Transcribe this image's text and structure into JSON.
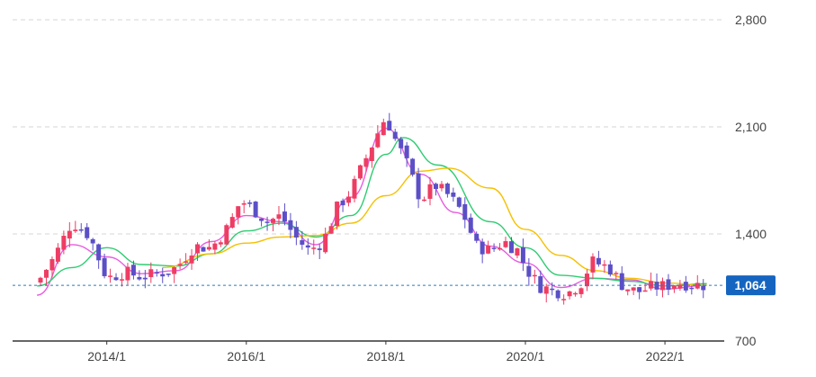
{
  "chart_data": {
    "type": "candlestick",
    "title": "",
    "xlabel": "",
    "ylabel": "",
    "ylim": [
      700,
      2800
    ],
    "x_ticks": [
      "2014/1",
      "2016/1",
      "2018/1",
      "2020/1",
      "2022/1"
    ],
    "y_ticks": [
      "2,800",
      "2,100",
      "1,400",
      "700"
    ],
    "y_tick_values": [
      2800,
      2100,
      1400,
      700
    ],
    "current_price": 1064,
    "current_price_label": "1,064",
    "grid": true,
    "colors": {
      "up": "#ee3d63",
      "down": "#5b4fc7",
      "ma_short": "#e85ce0",
      "ma_mid": "#2ecc71",
      "ma_long": "#f5c000",
      "price_line": "#2c7bb6",
      "badge": "#1565c0"
    },
    "monthly_close": [
      [
        2013.0,
        1080
      ],
      [
        2013.25,
        1250
      ],
      [
        2013.5,
        1480
      ],
      [
        2013.75,
        1390
      ],
      [
        2014.0,
        1110
      ],
      [
        2014.25,
        1150
      ],
      [
        2014.5,
        1120
      ],
      [
        2014.75,
        1140
      ],
      [
        2015.0,
        1180
      ],
      [
        2015.25,
        1320
      ],
      [
        2015.5,
        1310
      ],
      [
        2015.75,
        1450
      ],
      [
        2015.92,
        1620
      ],
      [
        2016.1,
        1560
      ],
      [
        2016.3,
        1480
      ],
      [
        2016.5,
        1520
      ],
      [
        2016.7,
        1380
      ],
      [
        2016.9,
        1290
      ],
      [
        2017.1,
        1350
      ],
      [
        2017.3,
        1570
      ],
      [
        2017.5,
        1680
      ],
      [
        2017.7,
        1880
      ],
      [
        2017.85,
        2030
      ],
      [
        2018.0,
        2170
      ],
      [
        2018.1,
        2050
      ],
      [
        2018.3,
        1860
      ],
      [
        2018.5,
        1620
      ],
      [
        2018.7,
        1720
      ],
      [
        2018.9,
        1650
      ],
      [
        2019.1,
        1540
      ],
      [
        2019.3,
        1320
      ],
      [
        2019.5,
        1290
      ],
      [
        2019.7,
        1350
      ],
      [
        2019.9,
        1290
      ],
      [
        2020.0,
        1180
      ],
      [
        2020.2,
        1060
      ],
      [
        2020.4,
        1030
      ],
      [
        2020.6,
        1010
      ],
      [
        2020.8,
        1080
      ],
      [
        2020.95,
        1220
      ],
      [
        2021.2,
        1180
      ],
      [
        2021.4,
        1060
      ],
      [
        2021.6,
        1020
      ],
      [
        2021.8,
        1050
      ],
      [
        2022.0,
        1060
      ],
      [
        2022.2,
        1080
      ],
      [
        2022.4,
        1070
      ],
      [
        2022.6,
        1064
      ]
    ],
    "moving_averages": [
      {
        "values": [
          [
            2013.0,
            1000
          ],
          [
            2013.5,
            1330
          ],
          [
            2014.0,
            1250
          ],
          [
            2014.5,
            1140
          ],
          [
            2015.0,
            1160
          ],
          [
            2015.5,
            1350
          ],
          [
            2016.0,
            1520
          ],
          [
            2016.5,
            1480
          ],
          [
            2017.0,
            1330
          ],
          [
            2017.5,
            1640
          ],
          [
            2018.0,
            2090
          ],
          [
            2018.5,
            1790
          ],
          [
            2019.0,
            1540
          ],
          [
            2019.5,
            1320
          ],
          [
            2020.0,
            1210
          ],
          [
            2020.5,
            1050
          ],
          [
            2021.0,
            1110
          ],
          [
            2021.5,
            1100
          ],
          [
            2022.0,
            1040
          ],
          [
            2022.6,
            1064
          ]
        ]
      },
      {
        "values": [
          [
            2013.0,
            1060
          ],
          [
            2013.5,
            1180
          ],
          [
            2014.0,
            1310
          ],
          [
            2014.5,
            1200
          ],
          [
            2015.0,
            1190
          ],
          [
            2015.5,
            1270
          ],
          [
            2016.0,
            1420
          ],
          [
            2016.5,
            1470
          ],
          [
            2017.0,
            1380
          ],
          [
            2017.5,
            1520
          ],
          [
            2018.0,
            1920
          ],
          [
            2018.25,
            2030
          ],
          [
            2018.75,
            1850
          ],
          [
            2019.5,
            1480
          ],
          [
            2020.0,
            1310
          ],
          [
            2020.5,
            1130
          ],
          [
            2021.0,
            1110
          ],
          [
            2021.5,
            1090
          ],
          [
            2022.0,
            1060
          ],
          [
            2022.6,
            1075
          ]
        ]
      },
      {
        "values": [
          [
            2014.8,
            1180
          ],
          [
            2015.5,
            1270
          ],
          [
            2016.0,
            1340
          ],
          [
            2016.5,
            1380
          ],
          [
            2017.0,
            1390
          ],
          [
            2017.5,
            1470
          ],
          [
            2018.0,
            1650
          ],
          [
            2018.5,
            1810
          ],
          [
            2018.9,
            1830
          ],
          [
            2019.5,
            1700
          ],
          [
            2020.0,
            1430
          ],
          [
            2020.5,
            1260
          ],
          [
            2021.0,
            1160
          ],
          [
            2021.5,
            1110
          ],
          [
            2022.0,
            1080
          ],
          [
            2022.6,
            1064
          ]
        ]
      }
    ]
  }
}
